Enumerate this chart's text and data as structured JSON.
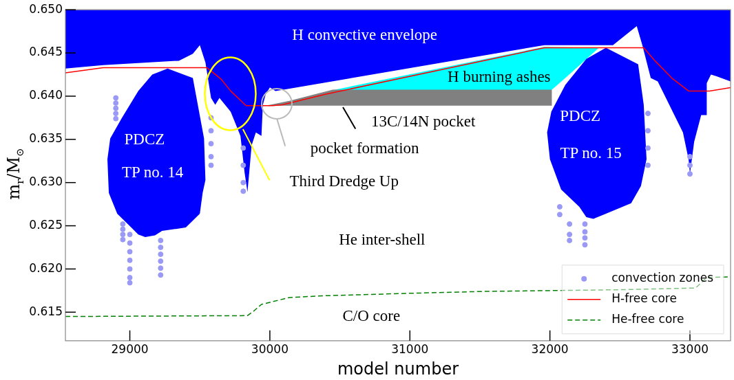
{
  "chart_data": {
    "type": "area",
    "xlabel": "model number",
    "ylabel": "m$_{r}$/M$_{⊙}$",
    "xlim": [
      28540,
      33290
    ],
    "ylim": [
      0.6117,
      0.65
    ],
    "xticks": [
      29000,
      30000,
      31000,
      32000,
      33000
    ],
    "yticks": [
      {
        "value": 0.615,
        "label": "0.615"
      },
      {
        "value": 0.62,
        "label": "0.620"
      },
      {
        "value": 0.625,
        "label": "0.625"
      },
      {
        "value": 0.63,
        "label": "0.630"
      },
      {
        "value": 0.635,
        "label": "0.635"
      },
      {
        "value": 0.64,
        "label": "0.640"
      },
      {
        "value": 0.645,
        "label": "0.645"
      },
      {
        "value": 0.65,
        "label": "0.650"
      }
    ],
    "legend": "bottom right",
    "series": [
      {
        "color": "#0000ff",
        "x": [
          28540,
          28540,
          28810,
          29350,
          29450,
          29500,
          29540,
          29580,
          29610,
          29640,
          29720,
          29790,
          29820,
          29840,
          29870,
          29900,
          29940,
          29950,
          29970,
          30000,
          30040,
          31960,
          32450,
          32620,
          32660,
          32720,
          32770,
          32950,
          32990,
          33000,
          33030,
          33080,
          33120,
          33120,
          33150,
          33190,
          33290,
          33290
        ],
        "values": [
          0.65,
          0.6432,
          0.6436,
          0.6441,
          0.6449,
          0.6459,
          0.6439,
          0.6398,
          0.639,
          0.6398,
          0.6382,
          0.6354,
          0.6311,
          0.6289,
          0.6343,
          0.6358,
          0.6354,
          0.639,
          0.6402,
          0.641,
          0.6406,
          0.6459,
          0.6459,
          0.6481,
          0.6459,
          0.6421,
          0.6417,
          0.6358,
          0.6327,
          0.631,
          0.6347,
          0.6378,
          0.6378,
          0.6415,
          0.6425,
          0.6423,
          0.6417,
          0.65
        ]
      },
      {
        "color": "#00ffff",
        "x": [
          30450,
          31960,
          32350,
          32110,
          32010
        ],
        "values": [
          0.6407,
          0.6457,
          0.6456,
          0.6421,
          0.6407
        ]
      },
      {
        "color": "#808080",
        "x": [
          29990,
          30140,
          30450,
          32010,
          32010
        ],
        "values": [
          0.6389,
          0.6394,
          0.6407,
          0.6407,
          0.6389
        ]
      },
      {
        "color": "#0000ff",
        "x": [
          29270,
          29450,
          29530,
          29540,
          29520,
          29500,
          29400,
          29230,
          29180,
          29110,
          29060,
          29010,
          28910,
          28850,
          28840,
          28860,
          28940,
          29060,
          29160
        ],
        "values": [
          0.6432,
          0.6421,
          0.6351,
          0.6303,
          0.6288,
          0.6264,
          0.6248,
          0.6244,
          0.6239,
          0.6237,
          0.624,
          0.6248,
          0.6264,
          0.6288,
          0.6327,
          0.6351,
          0.6374,
          0.6406,
          0.6425
        ]
      },
      {
        "color": "#0000ff",
        "x": [
          32400,
          32630,
          32670,
          32690,
          32650,
          32580,
          32400,
          32310,
          32260,
          32210,
          32080,
          32000,
          31980,
          32010,
          32110,
          32260
        ],
        "values": [
          0.6456,
          0.6437,
          0.639,
          0.6327,
          0.6296,
          0.6276,
          0.6264,
          0.6258,
          0.626,
          0.6272,
          0.6292,
          0.6327,
          0.6358,
          0.6382,
          0.6413,
          0.6443
        ]
      },
      {
        "type": "scatter",
        "name": "convection zones",
        "color": "#9a9af6",
        "marker": "circle",
        "x": [
          28900,
          28900,
          28900,
          28900,
          28900,
          28950,
          28950,
          28950,
          28950,
          29000,
          29000,
          29000,
          29000,
          29000,
          29000,
          29000,
          29220,
          29220,
          29220,
          29220,
          29220,
          29220,
          29580,
          29580,
          29580,
          29580,
          29580,
          29810,
          29810,
          29810,
          29810,
          32070,
          32070,
          32140,
          32140,
          32140,
          32250,
          32250,
          32250,
          32250,
          32700,
          32700,
          32700,
          32700,
          33000,
          33000,
          33000
        ],
        "values": [
          0.6398,
          0.6392,
          0.6386,
          0.638,
          0.6374,
          0.6252,
          0.6246,
          0.624,
          0.6234,
          0.624,
          0.623,
          0.622,
          0.621,
          0.62,
          0.619,
          0.6184,
          0.6233,
          0.6225,
          0.6217,
          0.6209,
          0.6201,
          0.6193,
          0.6375,
          0.636,
          0.6345,
          0.633,
          0.632,
          0.634,
          0.632,
          0.63,
          0.629,
          0.6272,
          0.6263,
          0.6252,
          0.624,
          0.6233,
          0.6252,
          0.6243,
          0.6236,
          0.6228,
          0.638,
          0.636,
          0.634,
          0.632,
          0.633,
          0.632,
          0.631
        ]
      },
      {
        "type": "line",
        "name": "H-free core",
        "color": "#ff0000",
        "line_style": "solid",
        "x": [
          28540,
          28810,
          29550,
          29650,
          29720,
          29830,
          30020,
          30090,
          30390,
          31960,
          32670,
          32750,
          32870,
          32990,
          33140,
          33290
        ],
        "values": [
          0.6427,
          0.6433,
          0.6433,
          0.642,
          0.6406,
          0.6389,
          0.6389,
          0.639,
          0.6402,
          0.6456,
          0.6456,
          0.6441,
          0.6421,
          0.6406,
          0.6406,
          0.641
        ]
      },
      {
        "type": "line",
        "name": "He-free core",
        "color": "#008000",
        "line_style": "dashed",
        "x": [
          28540,
          29840,
          29890,
          29940,
          30140,
          30390,
          31030,
          31520,
          32500,
          33040,
          33120,
          33290
        ],
        "values": [
          0.6145,
          0.6146,
          0.6152,
          0.6159,
          0.6167,
          0.6169,
          0.6172,
          0.6174,
          0.6176,
          0.6178,
          0.619,
          0.6191
        ]
      }
    ],
    "annotations": [
      "H convective envelope",
      "H burning ashes",
      "13C/14N pocket",
      "pocket formation",
      "Third Dredge Up",
      "PDCZ",
      "TP no. 14",
      "PDCZ",
      "TP no. 15",
      "He inter-shell",
      "C/O core"
    ]
  }
}
